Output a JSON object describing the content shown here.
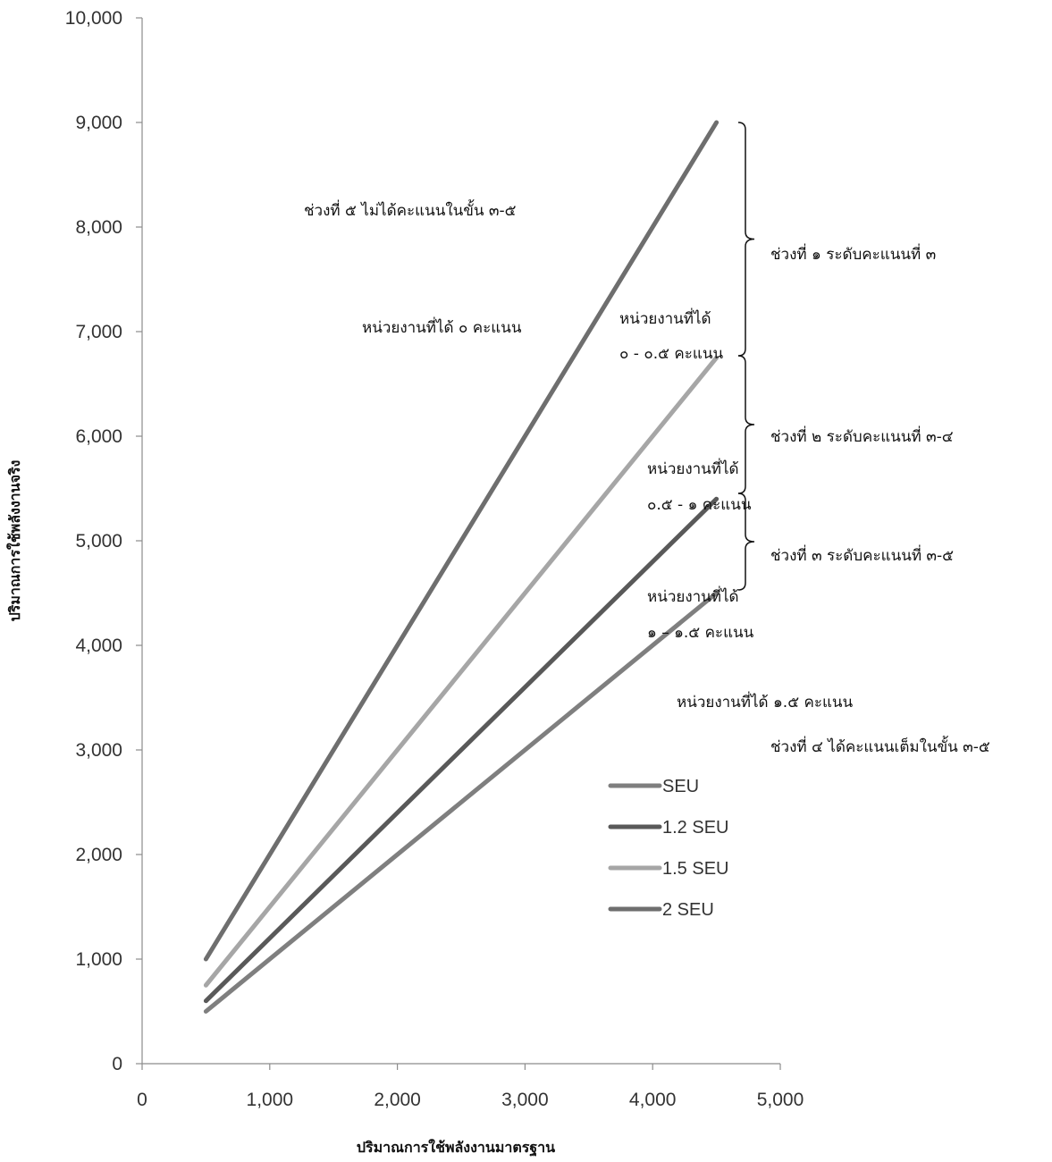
{
  "chart_data": {
    "type": "line",
    "xlabel": "ปริมาณการใช้พลังงานมาตรฐาน",
    "ylabel": "ปริมาณการใช้พลังงานจริง",
    "xlim": [
      0,
      5000
    ],
    "ylim": [
      0,
      10000
    ],
    "x_ticks": [
      "0",
      "1,000",
      "2,000",
      "3,000",
      "4,000",
      "5,000"
    ],
    "y_ticks": [
      "0",
      "1,000",
      "2,000",
      "3,000",
      "4,000",
      "5,000",
      "6,000",
      "7,000",
      "8,000",
      "9,000",
      "10,000"
    ],
    "x": [
      500,
      4500
    ],
    "series": [
      {
        "name": "SEU",
        "values": [
          500,
          4500
        ],
        "color": "#7f7f7f"
      },
      {
        "name": "1.2 SEU",
        "values": [
          600,
          5400
        ],
        "color": "#595959"
      },
      {
        "name": "1.5 SEU",
        "values": [
          750,
          6750
        ],
        "color": "#a6a6a6"
      },
      {
        "name": "2 SEU",
        "values": [
          1000,
          9000
        ],
        "color": "#6e6e6e"
      }
    ],
    "legend_position": "center-right",
    "grid": false,
    "annotations": {
      "zone5_title": "ช่วงที่ ๕ ไม่ได้คะแนนในขั้น ๓-๕",
      "zone5_score": "หน่วยงานที่ได้ ๐ คะแนน",
      "zone1_label": "ช่วงที่ ๑ ระดับคะแนนที่ ๓",
      "zone1_score_1": "หน่วยงานที่ได้",
      "zone1_score_2": "๐ - ๐.๕ คะแนน",
      "zone2_label": "ช่วงที่ ๒ ระดับคะแนนที่ ๓-๔",
      "zone2_score_1": "หน่วยงานที่ได้",
      "zone2_score_2": "๐.๕ - ๑ คะแนน",
      "zone3_label": "ช่วงที่ ๓ ระดับคะแนนที่ ๓-๕",
      "zone3_score_1": "หน่วยงานที่ได้",
      "zone3_score_2": "๑ – ๑.๕ คะแนน",
      "zone4_score": "หน่วยงานที่ได้ ๑.๕ คะแนน",
      "zone4_title": "ช่วงที่ ๔ ได้คะแนนเต็มในขั้น ๓-๕"
    }
  }
}
